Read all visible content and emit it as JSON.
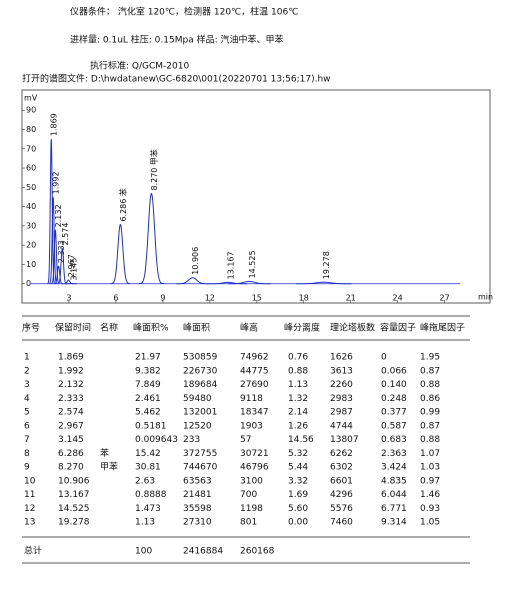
{
  "header": {
    "conditions": "仪器条件：  汽化室 120℃，检测器 120℃，柱温 106℃",
    "injection": "进样量: 0.1uL     柱压: 0.15Mpa    样品: 汽油中苯、甲苯",
    "standard": "执行标准: Q/GCM-2010",
    "file": "打开的谱图文件: D:\\hwdatanew\\GC-6820\\001(20220701 13;56;17).hw"
  },
  "chart_data": {
    "type": "peaks",
    "y_label": "mV",
    "x_label": "min",
    "x": [
      1.869,
      1.992,
      2.132,
      2.333,
      2.574,
      2.967,
      3.145,
      6.286,
      8.27,
      10.906,
      13.167,
      14.525,
      19.278
    ],
    "values": [
      75.0,
      44.8,
      27.7,
      9.1,
      18.3,
      1.9,
      0.1,
      30.7,
      46.8,
      3.1,
      0.7,
      1.2,
      0.8
    ],
    "peak_labels": [
      "1.869",
      "1.992",
      "2.132",
      "2.333",
      "2.574",
      "2.967",
      "3.145",
      "6.286 苯",
      "8.270 甲苯",
      "10.906",
      "13.167",
      "14.525",
      "19.278"
    ],
    "color": "#1f2fd0",
    "xlim": [
      0,
      29.9
    ],
    "ylim": [
      -10,
      100.5
    ],
    "xticks": [
      3,
      6,
      9,
      12,
      15,
      18,
      21,
      24,
      27
    ],
    "yticks": [
      0,
      10,
      20,
      30,
      40,
      50,
      60,
      70,
      80,
      90
    ]
  },
  "table": {
    "columns": [
      "序号",
      "保留时间",
      "名称",
      "峰面积%",
      "峰面积",
      "峰高",
      "峰分离度",
      "理论塔板数",
      "容量因子",
      "峰拖尾因子"
    ],
    "rows": [
      [
        "1",
        "1.869",
        null,
        "21.97",
        "530859",
        "74962",
        "0.76",
        "1626",
        "0",
        "1.95"
      ],
      [
        "2",
        "1.992",
        null,
        "9.382",
        "226730",
        "44775",
        "0.88",
        "3613",
        "0.066",
        "0.87"
      ],
      [
        "3",
        "2.132",
        null,
        "7.849",
        "189684",
        "27690",
        "1.13",
        "2260",
        "0.140",
        "0.88"
      ],
      [
        "4",
        "2.333",
        null,
        "2.461",
        "59480",
        "9118",
        "1.32",
        "2983",
        "0.248",
        "0.86"
      ],
      [
        "5",
        "2.574",
        null,
        "5.462",
        "132001",
        "18347",
        "2.14",
        "2987",
        "0.377",
        "0.99"
      ],
      [
        "6",
        "2.967",
        null,
        "0.5181",
        "12520",
        "1903",
        "1.26",
        "4744",
        "0.587",
        "0.87"
      ],
      [
        "7",
        "3.145",
        null,
        "0.009643",
        "233",
        "57",
        "14.56",
        "13807",
        "0.683",
        "0.88"
      ],
      [
        "8",
        "6.286",
        "苯",
        "15.42",
        "372755",
        "30721",
        "5.32",
        "6262",
        "2.363",
        "1.07"
      ],
      [
        "9",
        "8.270",
        "甲苯",
        "30.81",
        "744670",
        "46796",
        "5.44",
        "6302",
        "3.424",
        "1.03"
      ],
      [
        "10",
        "10.906",
        null,
        "2.63",
        "63563",
        "3100",
        "3.32",
        "6601",
        "4.835",
        "0.97"
      ],
      [
        "11",
        "13.167",
        null,
        "0.8888",
        "21481",
        "700",
        "1.69",
        "4296",
        "6.044",
        "1.46"
      ],
      [
        "12",
        "14.525",
        null,
        "1.473",
        "35598",
        "1198",
        "5.60",
        "5576",
        "6.771",
        "0.93"
      ],
      [
        "13",
        "19.278",
        null,
        "1.13",
        "27310",
        "801",
        "0.00",
        "7460",
        "9.314",
        "1.05"
      ]
    ],
    "total": [
      "总计",
      null,
      null,
      "100",
      "2416884",
      "260168"
    ]
  }
}
